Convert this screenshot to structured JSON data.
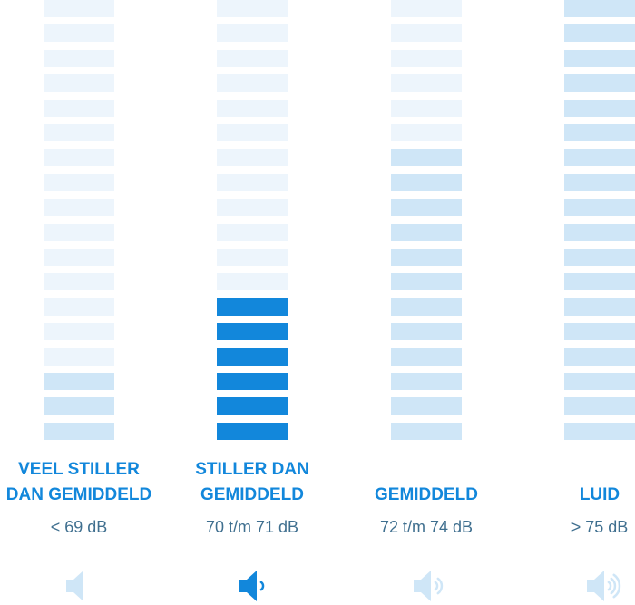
{
  "colors": {
    "accent": "#1287db",
    "segment_light": "#cfe6f7",
    "segment_faint": "#edf5fc",
    "range_text": "#3f6f8f",
    "icon_muted": "#cfe6f7"
  },
  "columns": [
    {
      "id": "veel-stiller",
      "label": "VEEL STILLER\nDAN GEMIDDELD",
      "range": "< 69 dB",
      "segments_total": 18,
      "segments_strong": 0,
      "segments_light": 3,
      "icon": "speaker-mute-icon",
      "icon_waves": 0,
      "icon_active": false
    },
    {
      "id": "stiller",
      "label": "STILLER DAN\nGEMIDDELD",
      "range": "70 t/m 71 dB",
      "segments_total": 18,
      "segments_strong": 6,
      "segments_light": 0,
      "icon": "speaker-low-icon",
      "icon_waves": 1,
      "icon_active": true
    },
    {
      "id": "gemiddeld",
      "label": "GEMIDDELD",
      "range": "72 t/m 74 dB",
      "segments_total": 18,
      "segments_strong": 0,
      "segments_light": 12,
      "icon": "speaker-medium-icon",
      "icon_waves": 2,
      "icon_active": false
    },
    {
      "id": "luid",
      "label": "LUID",
      "range": "> 75 dB",
      "segments_total": 18,
      "segments_strong": 0,
      "segments_light": 18,
      "icon": "speaker-loud-icon",
      "icon_waves": 3,
      "icon_active": false
    }
  ]
}
